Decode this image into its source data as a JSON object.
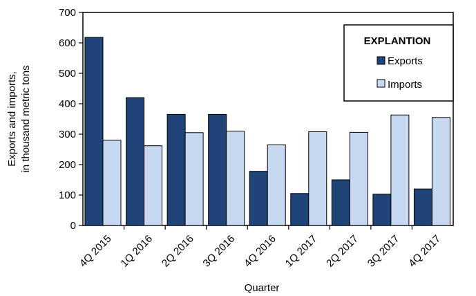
{
  "chart_data": {
    "type": "bar",
    "categories": [
      "4Q 2015",
      "1Q 2016",
      "2Q 2016",
      "3Q 2016",
      "4Q 2016",
      "1Q 2017",
      "2Q 2017",
      "3Q 2017",
      "4Q 2017"
    ],
    "series": [
      {
        "name": "Exports",
        "color": "#1f4478",
        "values": [
          618,
          420,
          365,
          365,
          178,
          105,
          150,
          103,
          120
        ]
      },
      {
        "name": "Imports",
        "color": "#c6d9f1",
        "values": [
          280,
          262,
          305,
          310,
          265,
          308,
          306,
          363,
          355
        ]
      }
    ],
    "xlabel": "Quarter",
    "ylabel_line1": "Exports and imports,",
    "ylabel_line2": "in thousand metric tons",
    "ylim": [
      0,
      700
    ],
    "yticks": [
      0,
      100,
      200,
      300,
      400,
      500,
      600,
      700
    ],
    "legend": {
      "title": "EXPLANTION",
      "placement": "top-right"
    },
    "grid": false
  }
}
